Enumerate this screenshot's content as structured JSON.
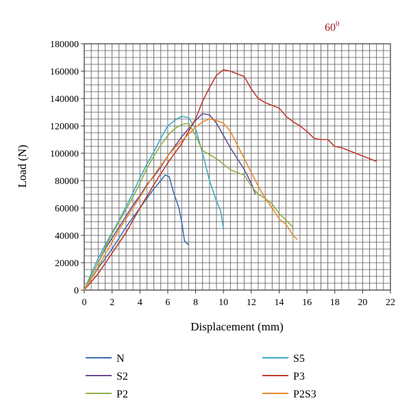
{
  "annotation": {
    "base": "60",
    "sup": "0"
  },
  "chart_data": {
    "type": "line",
    "xlabel": "Displacement (mm)",
    "ylabel": "Load (N)",
    "xlim": [
      0,
      22
    ],
    "ylim": [
      0,
      180000
    ],
    "xticks": [
      "0",
      "2",
      "4",
      "6",
      "8",
      "10",
      "12",
      "14",
      "16",
      "18",
      "20",
      "22"
    ],
    "yticks": [
      "0",
      "20000",
      "40000",
      "60000",
      "80000",
      "100000",
      "120000",
      "140000",
      "160000",
      "180000"
    ],
    "grid": true,
    "minor_grid": {
      "x_step": 0.5,
      "y_step": 5000
    },
    "legend_position": "bottom",
    "series": [
      {
        "name": "N",
        "color": "#3b6fb5",
        "points": [
          [
            0,
            0
          ],
          [
            0.5,
            8000
          ],
          [
            1,
            16000
          ],
          [
            1.5,
            23000
          ],
          [
            2,
            30000
          ],
          [
            2.5,
            38000
          ],
          [
            3,
            46000
          ],
          [
            3.5,
            53000
          ],
          [
            4,
            60000
          ],
          [
            4.5,
            67000
          ],
          [
            5,
            74000
          ],
          [
            5.5,
            80000
          ],
          [
            5.8,
            84000
          ],
          [
            6.1,
            83000
          ],
          [
            6.4,
            72000
          ],
          [
            6.8,
            60000
          ],
          [
            7,
            50000
          ],
          [
            7.2,
            36000
          ],
          [
            7.5,
            33000
          ]
        ]
      },
      {
        "name": "S5",
        "color": "#3fa9c4",
        "points": [
          [
            0,
            0
          ],
          [
            0.5,
            12000
          ],
          [
            1,
            23000
          ],
          [
            1.5,
            33000
          ],
          [
            2,
            42000
          ],
          [
            2.5,
            51000
          ],
          [
            3,
            61000
          ],
          [
            3.5,
            71000
          ],
          [
            4,
            82000
          ],
          [
            4.5,
            92000
          ],
          [
            5,
            101000
          ],
          [
            5.5,
            111000
          ],
          [
            6,
            120000
          ],
          [
            6.5,
            124000
          ],
          [
            7,
            127000
          ],
          [
            7.5,
            126000
          ],
          [
            8,
            118000
          ],
          [
            8.5,
            100000
          ],
          [
            9,
            80000
          ],
          [
            9.5,
            65000
          ],
          [
            9.8,
            58000
          ],
          [
            10,
            45000
          ]
        ]
      },
      {
        "name": "S2",
        "color": "#6a4a93",
        "points": [
          [
            0,
            0
          ],
          [
            0.5,
            10000
          ],
          [
            1,
            20000
          ],
          [
            1.5,
            30000
          ],
          [
            2,
            38000
          ],
          [
            2.5,
            46000
          ],
          [
            3,
            54000
          ],
          [
            3.5,
            62000
          ],
          [
            4,
            69000
          ],
          [
            4.5,
            77000
          ],
          [
            5,
            83000
          ],
          [
            5.5,
            90000
          ],
          [
            6,
            98000
          ],
          [
            6.5,
            105000
          ],
          [
            7,
            112000
          ],
          [
            7.5,
            118000
          ],
          [
            8,
            124000
          ],
          [
            8.5,
            129000
          ],
          [
            9,
            128000
          ],
          [
            9.5,
            122000
          ],
          [
            10,
            113000
          ],
          [
            10.5,
            104000
          ],
          [
            11,
            96000
          ],
          [
            11.5,
            88000
          ],
          [
            12,
            78000
          ],
          [
            12.3,
            70000
          ]
        ]
      },
      {
        "name": "P3",
        "color": "#c0392b",
        "points": [
          [
            0,
            0
          ],
          [
            1,
            12000
          ],
          [
            2,
            27000
          ],
          [
            3,
            42000
          ],
          [
            4,
            60000
          ],
          [
            5,
            77000
          ],
          [
            6,
            93000
          ],
          [
            7,
            107000
          ],
          [
            8,
            125000
          ],
          [
            8.5,
            138000
          ],
          [
            9,
            148000
          ],
          [
            9.5,
            157000
          ],
          [
            10,
            161000
          ],
          [
            10.5,
            160000
          ],
          [
            11,
            158000
          ],
          [
            11.5,
            156000
          ],
          [
            12,
            147000
          ],
          [
            12.5,
            140000
          ],
          [
            13,
            137000
          ],
          [
            13.5,
            135000
          ],
          [
            14,
            133000
          ],
          [
            14.5,
            127000
          ],
          [
            15,
            123000
          ],
          [
            15.5,
            120000
          ],
          [
            16,
            116000
          ],
          [
            16.5,
            111000
          ],
          [
            17,
            110000
          ],
          [
            17.5,
            110000
          ],
          [
            18,
            105000
          ],
          [
            18.5,
            104000
          ],
          [
            19,
            102000
          ],
          [
            19.5,
            100000
          ],
          [
            20,
            98000
          ],
          [
            20.5,
            96000
          ],
          [
            21,
            94000
          ]
        ]
      },
      {
        "name": "P2",
        "color": "#8fae4a",
        "points": [
          [
            0,
            0
          ],
          [
            0.5,
            10000
          ],
          [
            1,
            20000
          ],
          [
            1.5,
            31000
          ],
          [
            2,
            41000
          ],
          [
            2.5,
            50000
          ],
          [
            3,
            59000
          ],
          [
            3.5,
            68000
          ],
          [
            4,
            78000
          ],
          [
            4.5,
            89000
          ],
          [
            5,
            98000
          ],
          [
            5.5,
            106000
          ],
          [
            6,
            113000
          ],
          [
            6.5,
            118000
          ],
          [
            7,
            121000
          ],
          [
            7.5,
            122000
          ],
          [
            8,
            113000
          ],
          [
            8.5,
            102000
          ],
          [
            9,
            99000
          ],
          [
            9.5,
            96000
          ],
          [
            10,
            92000
          ],
          [
            10.5,
            88000
          ],
          [
            11,
            86000
          ],
          [
            11.5,
            84000
          ],
          [
            12,
            76000
          ],
          [
            12.5,
            70000
          ],
          [
            13,
            67000
          ],
          [
            13.5,
            63000
          ],
          [
            14,
            56000
          ],
          [
            14.5,
            51000
          ],
          [
            15,
            46000
          ]
        ]
      },
      {
        "name": "P2S3",
        "color": "#e8892c",
        "points": [
          [
            0,
            0
          ],
          [
            0.5,
            8000
          ],
          [
            1,
            17000
          ],
          [
            1.5,
            26000
          ],
          [
            2,
            35000
          ],
          [
            2.5,
            44000
          ],
          [
            3,
            52000
          ],
          [
            3.5,
            60000
          ],
          [
            4,
            68000
          ],
          [
            4.5,
            76000
          ],
          [
            5,
            84000
          ],
          [
            5.5,
            91000
          ],
          [
            6,
            98000
          ],
          [
            6.5,
            104000
          ],
          [
            7,
            109000
          ],
          [
            7.5,
            114000
          ],
          [
            8,
            119000
          ],
          [
            8.5,
            123000
          ],
          [
            9,
            125000
          ],
          [
            9.5,
            124000
          ],
          [
            10,
            122000
          ],
          [
            10.5,
            116000
          ],
          [
            11,
            106000
          ],
          [
            11.5,
            96000
          ],
          [
            12,
            86000
          ],
          [
            12.5,
            76000
          ],
          [
            13,
            67000
          ],
          [
            13.5,
            60000
          ],
          [
            14,
            52000
          ],
          [
            14.5,
            48000
          ],
          [
            15,
            40000
          ],
          [
            15.3,
            37000
          ]
        ]
      }
    ]
  }
}
